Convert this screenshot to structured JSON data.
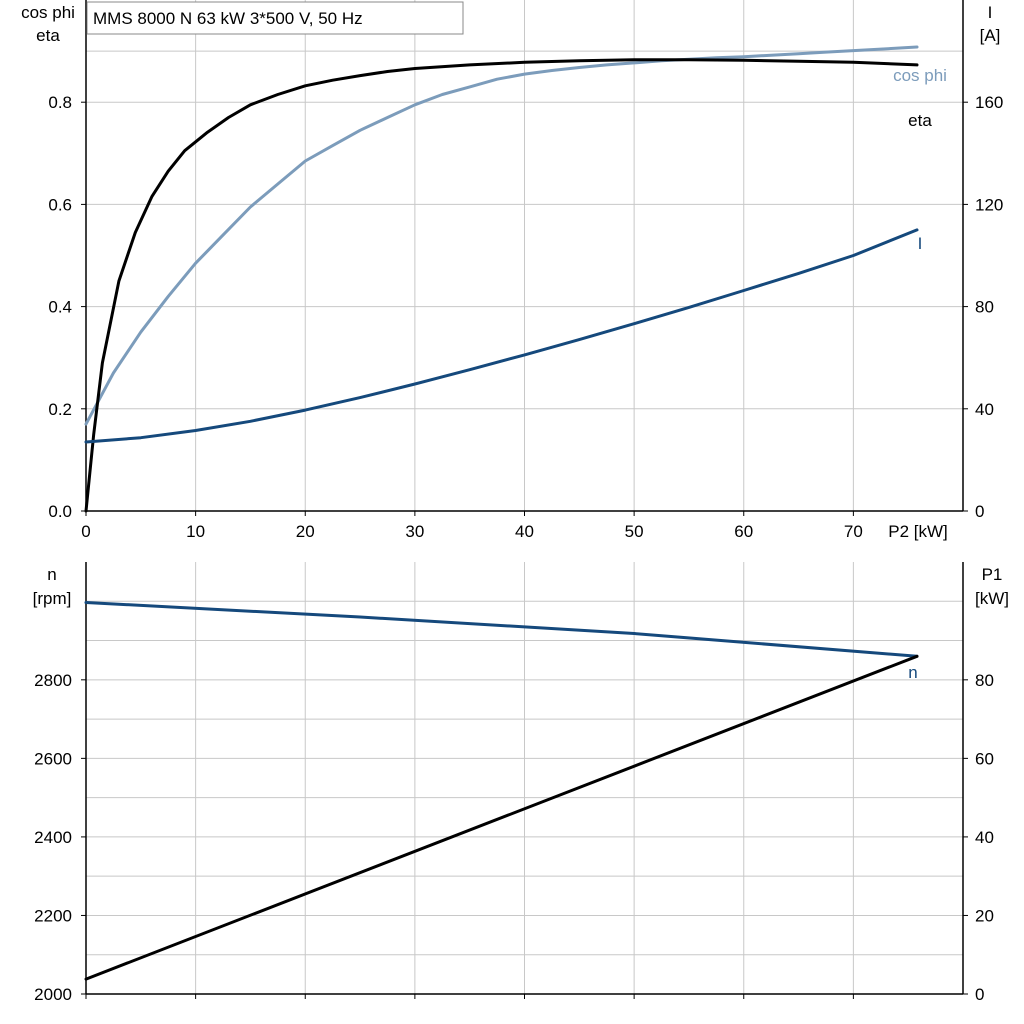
{
  "chart_data": [
    {
      "type": "line",
      "title": "MMS 8000 N   63 kW   3*500 V, 50 Hz",
      "xlabel": "P2 [kW]",
      "xlim": [
        0,
        80
      ],
      "xticks": [
        0,
        10,
        20,
        30,
        40,
        50,
        60,
        70
      ],
      "ylabel_left": [
        "cos phi",
        "eta"
      ],
      "ylim_left": [
        0,
        1.0
      ],
      "yticks_left": [
        0.0,
        0.2,
        0.4,
        0.6,
        0.8
      ],
      "ylabel_right": [
        "I",
        "[A]"
      ],
      "ylim_right": [
        0,
        200
      ],
      "yticks_right": [
        0,
        40,
        80,
        120,
        160
      ],
      "grid": true,
      "series": [
        {
          "name": "cos phi",
          "axis": "left",
          "color": "#7c9cbb",
          "x": [
            0,
            2.5,
            5,
            7.5,
            10,
            12.5,
            15,
            17.5,
            20,
            22.5,
            25,
            27.5,
            30,
            32.5,
            35,
            37.5,
            40,
            42.5,
            45,
            47.5,
            50,
            52.5,
            55,
            57.5,
            60,
            62.5,
            65,
            67.5,
            70,
            72.5,
            75.8
          ],
          "y": [
            0.17,
            0.27,
            0.35,
            0.42,
            0.485,
            0.54,
            0.595,
            0.64,
            0.685,
            0.715,
            0.745,
            0.77,
            0.795,
            0.815,
            0.83,
            0.845,
            0.855,
            0.862,
            0.868,
            0.873,
            0.877,
            0.881,
            0.884,
            0.887,
            0.889,
            0.892,
            0.895,
            0.898,
            0.901,
            0.904,
            0.908
          ]
        },
        {
          "name": "eta",
          "axis": "left",
          "color": "#000000",
          "x": [
            0,
            0.7,
            1.5,
            3,
            4.5,
            6,
            7.5,
            9,
            11,
            13,
            15,
            17.5,
            20,
            22.5,
            25,
            27.5,
            30,
            35,
            40,
            45,
            50,
            55,
            60,
            65,
            70,
            75.8
          ],
          "y": [
            0,
            0.15,
            0.29,
            0.45,
            0.545,
            0.615,
            0.665,
            0.705,
            0.74,
            0.77,
            0.795,
            0.815,
            0.832,
            0.843,
            0.852,
            0.86,
            0.866,
            0.873,
            0.878,
            0.881,
            0.883,
            0.883,
            0.882,
            0.88,
            0.878,
            0.873
          ]
        },
        {
          "name": "I",
          "axis": "right",
          "color": "#15497c",
          "x": [
            0,
            5,
            10,
            15,
            20,
            25,
            30,
            35,
            40,
            45,
            50,
            55,
            60,
            65,
            70,
            75.8
          ],
          "y": [
            27,
            28.7,
            31.5,
            35.1,
            39.5,
            44.4,
            49.7,
            55.3,
            61.1,
            67.1,
            73.3,
            79.7,
            86.3,
            93.0,
            100.0,
            110.0
          ]
        }
      ]
    },
    {
      "type": "line",
      "xlabel": "",
      "xlim": [
        0,
        80
      ],
      "xticks": [
        0,
        10,
        20,
        30,
        40,
        50,
        60,
        70
      ],
      "ylabel_left": [
        "n",
        "[rpm]"
      ],
      "ylim_left": [
        2000,
        3100
      ],
      "yticks_left": [
        2000,
        2200,
        2400,
        2600,
        2800
      ],
      "ylabel_right": [
        "P1",
        "[kW]"
      ],
      "ylim_right": [
        0,
        110
      ],
      "yticks_right": [
        0,
        20,
        40,
        60,
        80
      ],
      "grid": true,
      "series": [
        {
          "name": "n",
          "axis": "left",
          "color": "#15497c",
          "x": [
            0,
            25,
            50,
            75.8
          ],
          "y": [
            2997,
            2960,
            2918,
            2860
          ]
        },
        {
          "name": "",
          "axis": "right",
          "color": "#000000",
          "x": [
            0,
            75.8
          ],
          "y": [
            3.8,
            86.0
          ]
        }
      ]
    }
  ]
}
